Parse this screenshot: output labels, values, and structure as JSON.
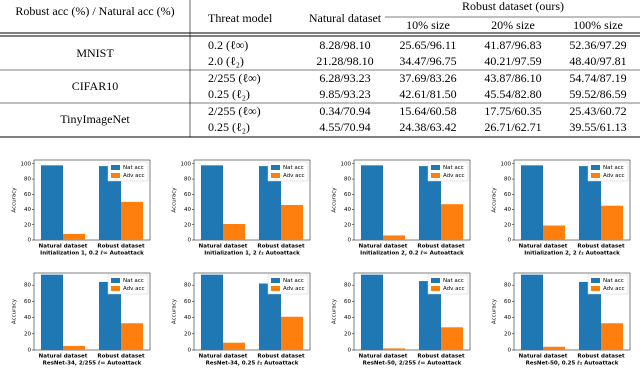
{
  "table": {
    "header": {
      "corner": "Robust acc (%) / Natural acc (%)",
      "threat": "Threat model",
      "natural": "Natural dataset",
      "robust": "Robust dataset (ours)",
      "sizes": [
        "10% size",
        "20% size",
        "100% size"
      ]
    },
    "groups": [
      {
        "dataset": "MNIST",
        "rows": [
          [
            "0.2 (ℓ∞)",
            "8.28/98.10",
            "25.65/96.11",
            "41.87/96.83",
            "52.36/97.29"
          ],
          [
            "2.0 (ℓ₂)",
            "21.28/98.10",
            "34.47/96.75",
            "40.21/97.59",
            "48.40/97.81"
          ]
        ]
      },
      {
        "dataset": "CIFAR10",
        "rows": [
          [
            "2/255 (ℓ∞)",
            "6.28/93.23",
            "37.69/83.26",
            "43.87/86.10",
            "54.74/87.19"
          ],
          [
            "0.25 (ℓ₂)",
            "9.85/93.23",
            "42.61/81.50",
            "45.54/82.80",
            "59.52/86.59"
          ]
        ]
      },
      {
        "dataset": "TinyImageNet",
        "rows": [
          [
            "2/255 (ℓ∞)",
            "0.34/70.94",
            "15.64/60.58",
            "17.75/60.35",
            "25.43/60.72"
          ],
          [
            "0.25 (ℓ₂)",
            "4.55/70.94",
            "24.38/63.42",
            "26.71/62.71",
            "39.55/61.13"
          ]
        ]
      }
    ]
  },
  "chart_data": [
    {
      "type": "bar",
      "xlabel": "Initialization 1, 0.2 ℓ∞ Autoattack",
      "ylabel": "Accuracy",
      "categories": [
        "Natural dataset",
        "Robust dataset"
      ],
      "series": [
        {
          "name": "Nat acc",
          "color": "#1f77b4",
          "values": [
            98,
            97
          ]
        },
        {
          "name": "Adv acc",
          "color": "#ff7f0e",
          "values": [
            8,
            50
          ]
        }
      ],
      "ylim": [
        0,
        105
      ],
      "yticks": [
        0,
        20,
        40,
        60,
        80,
        100
      ],
      "legend": "upper right"
    },
    {
      "type": "bar",
      "xlabel": "Initialization 1, 2 ℓ₂ Autoattack",
      "ylabel": "Accuracy",
      "categories": [
        "Natural dataset",
        "Robust dataset"
      ],
      "series": [
        {
          "name": "Nat acc",
          "color": "#1f77b4",
          "values": [
            98,
            97
          ]
        },
        {
          "name": "Adv acc",
          "color": "#ff7f0e",
          "values": [
            21,
            46
          ]
        }
      ],
      "ylim": [
        0,
        105
      ],
      "yticks": [
        0,
        20,
        40,
        60,
        80,
        100
      ],
      "legend": "upper right"
    },
    {
      "type": "bar",
      "xlabel": "Initialization 2, 0.2 ℓ∞ Autoattack",
      "ylabel": "Accuracy",
      "categories": [
        "Natural dataset",
        "Robust dataset"
      ],
      "series": [
        {
          "name": "Nat acc",
          "color": "#1f77b4",
          "values": [
            98,
            97
          ]
        },
        {
          "name": "Adv acc",
          "color": "#ff7f0e",
          "values": [
            6,
            47
          ]
        }
      ],
      "ylim": [
        0,
        105
      ],
      "yticks": [
        0,
        20,
        40,
        60,
        80,
        100
      ],
      "legend": "upper right"
    },
    {
      "type": "bar",
      "xlabel": "Initialization 2, 2 ℓ₂ Autoattack",
      "ylabel": "Accuracy",
      "categories": [
        "Natural dataset",
        "Robust dataset"
      ],
      "series": [
        {
          "name": "Nat acc",
          "color": "#1f77b4",
          "values": [
            98,
            97
          ]
        },
        {
          "name": "Adv acc",
          "color": "#ff7f0e",
          "values": [
            19,
            45
          ]
        }
      ],
      "ylim": [
        0,
        105
      ],
      "yticks": [
        0,
        20,
        40,
        60,
        80,
        100
      ],
      "legend": "upper right"
    },
    {
      "type": "bar",
      "xlabel": "ResNet-34, 2/255 ℓ∞ Autoattack",
      "ylabel": "Accuracy",
      "categories": [
        "Natural dataset",
        "Robust dataset"
      ],
      "series": [
        {
          "name": "Nat acc",
          "color": "#1f77b4",
          "values": [
            93,
            84
          ]
        },
        {
          "name": "Adv acc",
          "color": "#ff7f0e",
          "values": [
            5,
            33
          ]
        }
      ],
      "ylim": [
        0,
        95
      ],
      "yticks": [
        0,
        20,
        40,
        60,
        80
      ],
      "legend": "upper right"
    },
    {
      "type": "bar",
      "xlabel": "ResNet-34, 0.25 ℓ₂ Autoattack",
      "ylabel": "Accuracy",
      "categories": [
        "Natural dataset",
        "Robust dataset"
      ],
      "series": [
        {
          "name": "Nat acc",
          "color": "#1f77b4",
          "values": [
            93,
            82
          ]
        },
        {
          "name": "Adv acc",
          "color": "#ff7f0e",
          "values": [
            9,
            41
          ]
        }
      ],
      "ylim": [
        0,
        95
      ],
      "yticks": [
        0,
        20,
        40,
        60,
        80
      ],
      "legend": "upper right"
    },
    {
      "type": "bar",
      "xlabel": "ResNet-50, 2/255 ℓ∞ Autoattack",
      "ylabel": "Accuracy",
      "categories": [
        "Natural dataset",
        "Robust dataset"
      ],
      "series": [
        {
          "name": "Nat acc",
          "color": "#1f77b4",
          "values": [
            93,
            85
          ]
        },
        {
          "name": "Adv acc",
          "color": "#ff7f0e",
          "values": [
            2,
            28
          ]
        }
      ],
      "ylim": [
        0,
        95
      ],
      "yticks": [
        0,
        20,
        40,
        60,
        80
      ],
      "legend": "upper right"
    },
    {
      "type": "bar",
      "xlabel": "ResNet-50, 0.25 ℓ₂ Autoattack",
      "ylabel": "Accuracy",
      "categories": [
        "Natural dataset",
        "Robust dataset"
      ],
      "series": [
        {
          "name": "Nat acc",
          "color": "#1f77b4",
          "values": [
            93,
            84
          ]
        },
        {
          "name": "Adv acc",
          "color": "#ff7f0e",
          "values": [
            4,
            33
          ]
        }
      ],
      "ylim": [
        0,
        95
      ],
      "yticks": [
        0,
        20,
        40,
        60,
        80
      ],
      "legend": "upper right"
    }
  ]
}
